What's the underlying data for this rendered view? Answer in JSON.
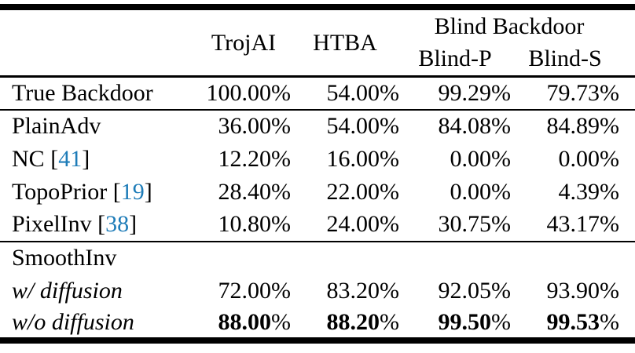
{
  "table": {
    "percent_sign": "%",
    "columns": {
      "trojai": "TrojAI",
      "htba": "HTBA",
      "blind_group": "Blind Backdoor",
      "blind_p": "Blind-P",
      "blind_s": "Blind-S"
    },
    "rows": [
      {
        "label": "True Backdoor",
        "values": [
          "100.00",
          "54.00",
          "99.29",
          "79.73"
        ]
      },
      {
        "label": "PlainAdv",
        "values": [
          "36.00",
          "54.00",
          "84.08",
          "84.89"
        ]
      },
      {
        "label": "NC",
        "cite_open": " [",
        "cite": "41",
        "cite_close": "]",
        "values": [
          "12.20",
          "16.00",
          "0.00",
          "0.00"
        ]
      },
      {
        "label": "TopoPrior",
        "cite_open": " [",
        "cite": "19",
        "cite_close": "]",
        "values": [
          "28.40",
          "22.00",
          "0.00",
          "4.39"
        ]
      },
      {
        "label": "PixelInv",
        "cite_open": " [",
        "cite": "38",
        "cite_close": "]",
        "values": [
          "10.80",
          "24.00",
          "30.75",
          "43.17"
        ]
      },
      {
        "label": "SmoothInv",
        "values": []
      },
      {
        "label": "w/ diffusion",
        "style": "italic",
        "values": [
          "72.00",
          "83.20",
          "92.05",
          "93.90"
        ]
      },
      {
        "label": "w/o diffusion",
        "style": "italic",
        "values_bold": true,
        "values": [
          "88.00",
          "88.20",
          "99.50",
          "99.53"
        ]
      }
    ]
  },
  "colors": {
    "citation_blue": "#1e7cb8",
    "text": "#000000",
    "rule": "#000000",
    "background": "#ffffff"
  }
}
